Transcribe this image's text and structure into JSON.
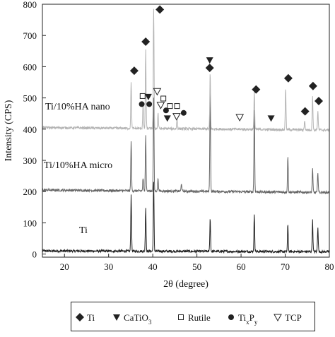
{
  "chart_data": {
    "type": "line",
    "title": "",
    "xlabel": "2θ (degree)",
    "ylabel": "Intensity (CPS)",
    "xlim": [
      15,
      80
    ],
    "ylim": [
      -10,
      800
    ],
    "x_ticks": [
      20,
      30,
      40,
      50,
      60,
      70,
      80
    ],
    "y_ticks": [
      0,
      100,
      200,
      300,
      400,
      500,
      600,
      700,
      800
    ],
    "series": [
      {
        "name": "Ti",
        "color": "#222222",
        "baseline": 10,
        "peaks": [
          [
            35.1,
            180
          ],
          [
            38.4,
            140
          ],
          [
            40.2,
            220
          ],
          [
            53.0,
            105
          ],
          [
            63.0,
            115
          ],
          [
            70.6,
            85
          ],
          [
            76.2,
            100
          ],
          [
            77.4,
            80
          ]
        ]
      },
      {
        "name": "Ti/10%HA micro",
        "color": "#666666",
        "baseline": 205,
        "peaks": [
          [
            35.1,
            160
          ],
          [
            37.8,
            40
          ],
          [
            38.4,
            180
          ],
          [
            40.2,
            295
          ],
          [
            41.2,
            40
          ],
          [
            46.5,
            25
          ],
          [
            53.0,
            320
          ],
          [
            63.0,
            260
          ],
          [
            70.6,
            115
          ],
          [
            76.2,
            75
          ],
          [
            77.4,
            65
          ]
        ]
      },
      {
        "name": "Ti/10%HA nano",
        "color": "#b4b4b4",
        "baseline": 405,
        "peaks": [
          [
            35.1,
            150
          ],
          [
            37.8,
            80
          ],
          [
            38.4,
            255
          ],
          [
            40.2,
            385
          ],
          [
            41.2,
            50
          ],
          [
            45.5,
            30
          ],
          [
            53.0,
            180
          ],
          [
            63.0,
            120
          ],
          [
            70.1,
            135
          ],
          [
            74.4,
            30
          ],
          [
            76.2,
            110
          ],
          [
            77.4,
            60
          ]
        ]
      }
    ],
    "markers": [
      {
        "symbol": "diamond",
        "x": 35.8,
        "y": 587
      },
      {
        "symbol": "diamond",
        "x": 38.4,
        "y": 680
      },
      {
        "symbol": "diamond",
        "x": 41.6,
        "y": 783
      },
      {
        "symbol": "diamond",
        "x": 52.9,
        "y": 596
      },
      {
        "symbol": "diamond",
        "x": 63.4,
        "y": 527
      },
      {
        "symbol": "diamond",
        "x": 70.7,
        "y": 563
      },
      {
        "symbol": "diamond",
        "x": 74.5,
        "y": 457
      },
      {
        "symbol": "diamond",
        "x": 76.3,
        "y": 538
      },
      {
        "symbol": "diamond",
        "x": 77.6,
        "y": 490
      },
      {
        "symbol": "triangle-down",
        "x": 39.0,
        "y": 504
      },
      {
        "symbol": "triangle-down",
        "x": 43.3,
        "y": 435
      },
      {
        "symbol": "triangle-down",
        "x": 52.9,
        "y": 621
      },
      {
        "symbol": "triangle-down",
        "x": 66.8,
        "y": 435
      },
      {
        "symbol": "square",
        "x": 37.7,
        "y": 506
      },
      {
        "symbol": "square",
        "x": 42.4,
        "y": 498
      },
      {
        "symbol": "square",
        "x": 43.9,
        "y": 474
      },
      {
        "symbol": "square",
        "x": 45.5,
        "y": 474
      },
      {
        "symbol": "circle",
        "x": 37.5,
        "y": 480
      },
      {
        "symbol": "circle",
        "x": 39.2,
        "y": 480
      },
      {
        "symbol": "circle",
        "x": 43.0,
        "y": 460
      },
      {
        "symbol": "circle",
        "x": 47.0,
        "y": 452
      },
      {
        "symbol": "triangle-down-open",
        "x": 41.0,
        "y": 521
      },
      {
        "symbol": "triangle-down-open",
        "x": 41.8,
        "y": 477
      },
      {
        "symbol": "triangle-down-open",
        "x": 45.4,
        "y": 441
      },
      {
        "symbol": "triangle-down-open",
        "x": 59.7,
        "y": 438
      }
    ],
    "legend": {
      "position": "bottom",
      "entries": [
        {
          "symbol": "diamond",
          "label": "Ti",
          "sub": ""
        },
        {
          "symbol": "triangle-down",
          "label": "CaTiO",
          "sub": "3"
        },
        {
          "symbol": "square",
          "label": "Rutile",
          "sub": ""
        },
        {
          "symbol": "circle",
          "label": "Ti",
          "sub": "x",
          "label2": "P",
          "sub2": "y"
        },
        {
          "symbol": "triangle-down-open",
          "label": "TCP",
          "sub": ""
        }
      ]
    }
  }
}
